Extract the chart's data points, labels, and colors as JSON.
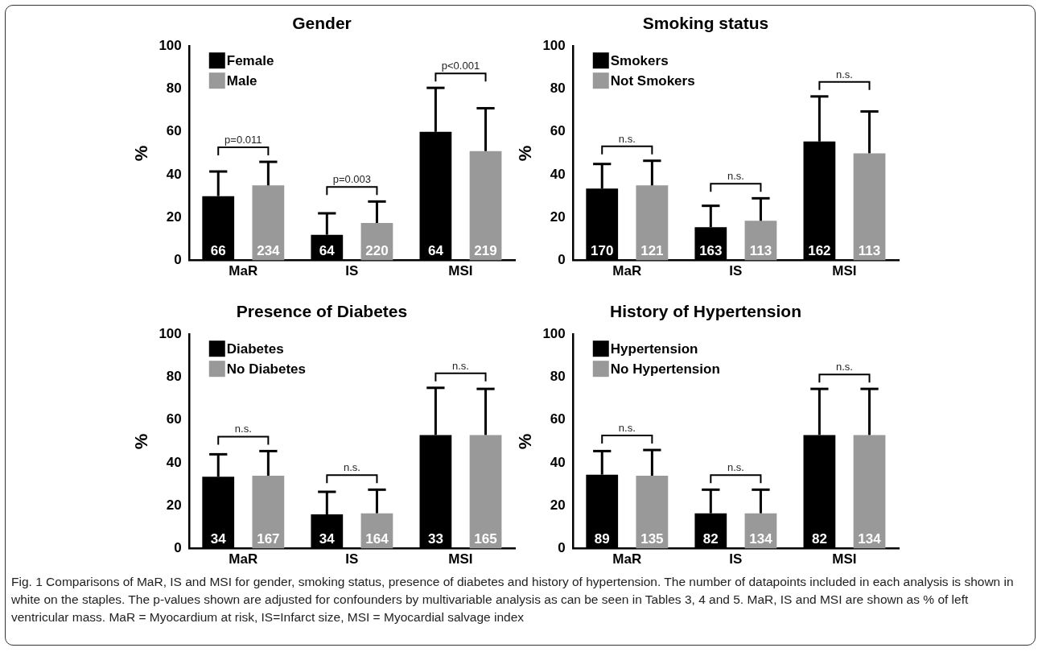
{
  "chart_data": [
    {
      "type": "bar",
      "title": "Gender",
      "ylabel": "%",
      "categories": [
        "MaR",
        "IS",
        "MSI"
      ],
      "ylim": [
        0,
        100
      ],
      "yticks": [
        0,
        20,
        40,
        60,
        80,
        100
      ],
      "grid": false,
      "legend": "top left",
      "series": [
        {
          "name": "Female",
          "color": "#000000",
          "values": [
            30,
            12,
            60
          ],
          "errors": [
            [
              30,
              41.5
            ],
            [
              12,
              22
            ],
            [
              60,
              80.5
            ]
          ]
        },
        {
          "name": "Male",
          "color": "#999999",
          "values": [
            35,
            17.5,
            51
          ],
          "errors": [
            [
              35,
              46
            ],
            [
              17.5,
              27.5
            ],
            [
              51,
              71
            ]
          ]
        }
      ],
      "annotations": [
        "66",
        "64",
        "64",
        "234",
        "220",
        "219",
        "p=0.011",
        "p=0.003",
        "p<0.001"
      ]
    },
    {
      "type": "bar",
      "title": "Smoking status",
      "ylabel": "%",
      "categories": [
        "MaR",
        "IS",
        "MSI"
      ],
      "ylim": [
        0,
        100
      ],
      "yticks": [
        0,
        20,
        40,
        60,
        80,
        100
      ],
      "grid": false,
      "legend": "top left",
      "series": [
        {
          "name": "Smokers",
          "color": "#000000",
          "values": [
            33.5,
            15.5,
            55.5
          ],
          "errors": [
            [
              33.5,
              45
            ],
            [
              15.5,
              25.5
            ],
            [
              55.5,
              76.5
            ]
          ]
        },
        {
          "name": "Not Smokers",
          "color": "#999999",
          "values": [
            35,
            18.5,
            50
          ],
          "errors": [
            [
              35,
              46.5
            ],
            [
              18.5,
              29
            ],
            [
              50,
              69.5
            ]
          ]
        }
      ],
      "annotations": [
        "170",
        "163",
        "162",
        "121",
        "113",
        "113",
        "n.s.",
        "n.s.",
        "n.s."
      ]
    },
    {
      "type": "bar",
      "title": "Presence of Diabetes",
      "ylabel": "%",
      "categories": [
        "MaR",
        "IS",
        "MSI"
      ],
      "ylim": [
        0,
        100
      ],
      "yticks": [
        0,
        20,
        40,
        60,
        80,
        100
      ],
      "grid": false,
      "legend": "top left",
      "series": [
        {
          "name": "Diabetes",
          "color": "#000000",
          "values": [
            33.5,
            16,
            53
          ],
          "errors": [
            [
              33.5,
              44
            ],
            [
              16,
              26.5
            ],
            [
              53,
              75
            ]
          ]
        },
        {
          "name": "No Diabetes",
          "color": "#999999",
          "values": [
            34,
            16.5,
            53
          ],
          "errors": [
            [
              34,
              45.5
            ],
            [
              16.5,
              27.5
            ],
            [
              53,
              74.5
            ]
          ]
        }
      ],
      "annotations": [
        "34",
        "34",
        "33",
        "167",
        "164",
        "165",
        "n.s.",
        "n.s.",
        "n.s."
      ]
    },
    {
      "type": "bar",
      "title": "History of Hypertension",
      "ylabel": "%",
      "categories": [
        "MaR",
        "IS",
        "MSI"
      ],
      "ylim": [
        0,
        100
      ],
      "yticks": [
        0,
        20,
        40,
        60,
        80,
        100
      ],
      "grid": false,
      "legend": "top left",
      "series": [
        {
          "name": "Hypertension",
          "color": "#000000",
          "values": [
            34.5,
            16.5,
            53
          ],
          "errors": [
            [
              34.5,
              45.5
            ],
            [
              16.5,
              27.5
            ],
            [
              53,
              74.5
            ]
          ]
        },
        {
          "name": "No Hypertension",
          "color": "#999999",
          "values": [
            34,
            16.5,
            53
          ],
          "errors": [
            [
              34,
              46
            ],
            [
              16.5,
              27.5
            ],
            [
              53,
              74.5
            ]
          ]
        }
      ],
      "annotations": [
        "89",
        "82",
        "82",
        "135",
        "134",
        "134",
        "n.s.",
        "n.s.",
        "n.s.",
        "Fig. 1 Comparisons of MaR, IS and MSI for gender, smoking status, presence of diabetes and history of hypertension. The number of datapoints included in each analysis is shown in white on the staples. The p-values shown are adjusted for confounders by multivariable analysis as can be seen in Tables 3, 4 and 5. MaR, IS and MSI are shown as % of left ventricular mass. MaR = Myocardium at risk, IS=Infarct size, MSI = Myocardial salvage index"
      ]
    }
  ]
}
